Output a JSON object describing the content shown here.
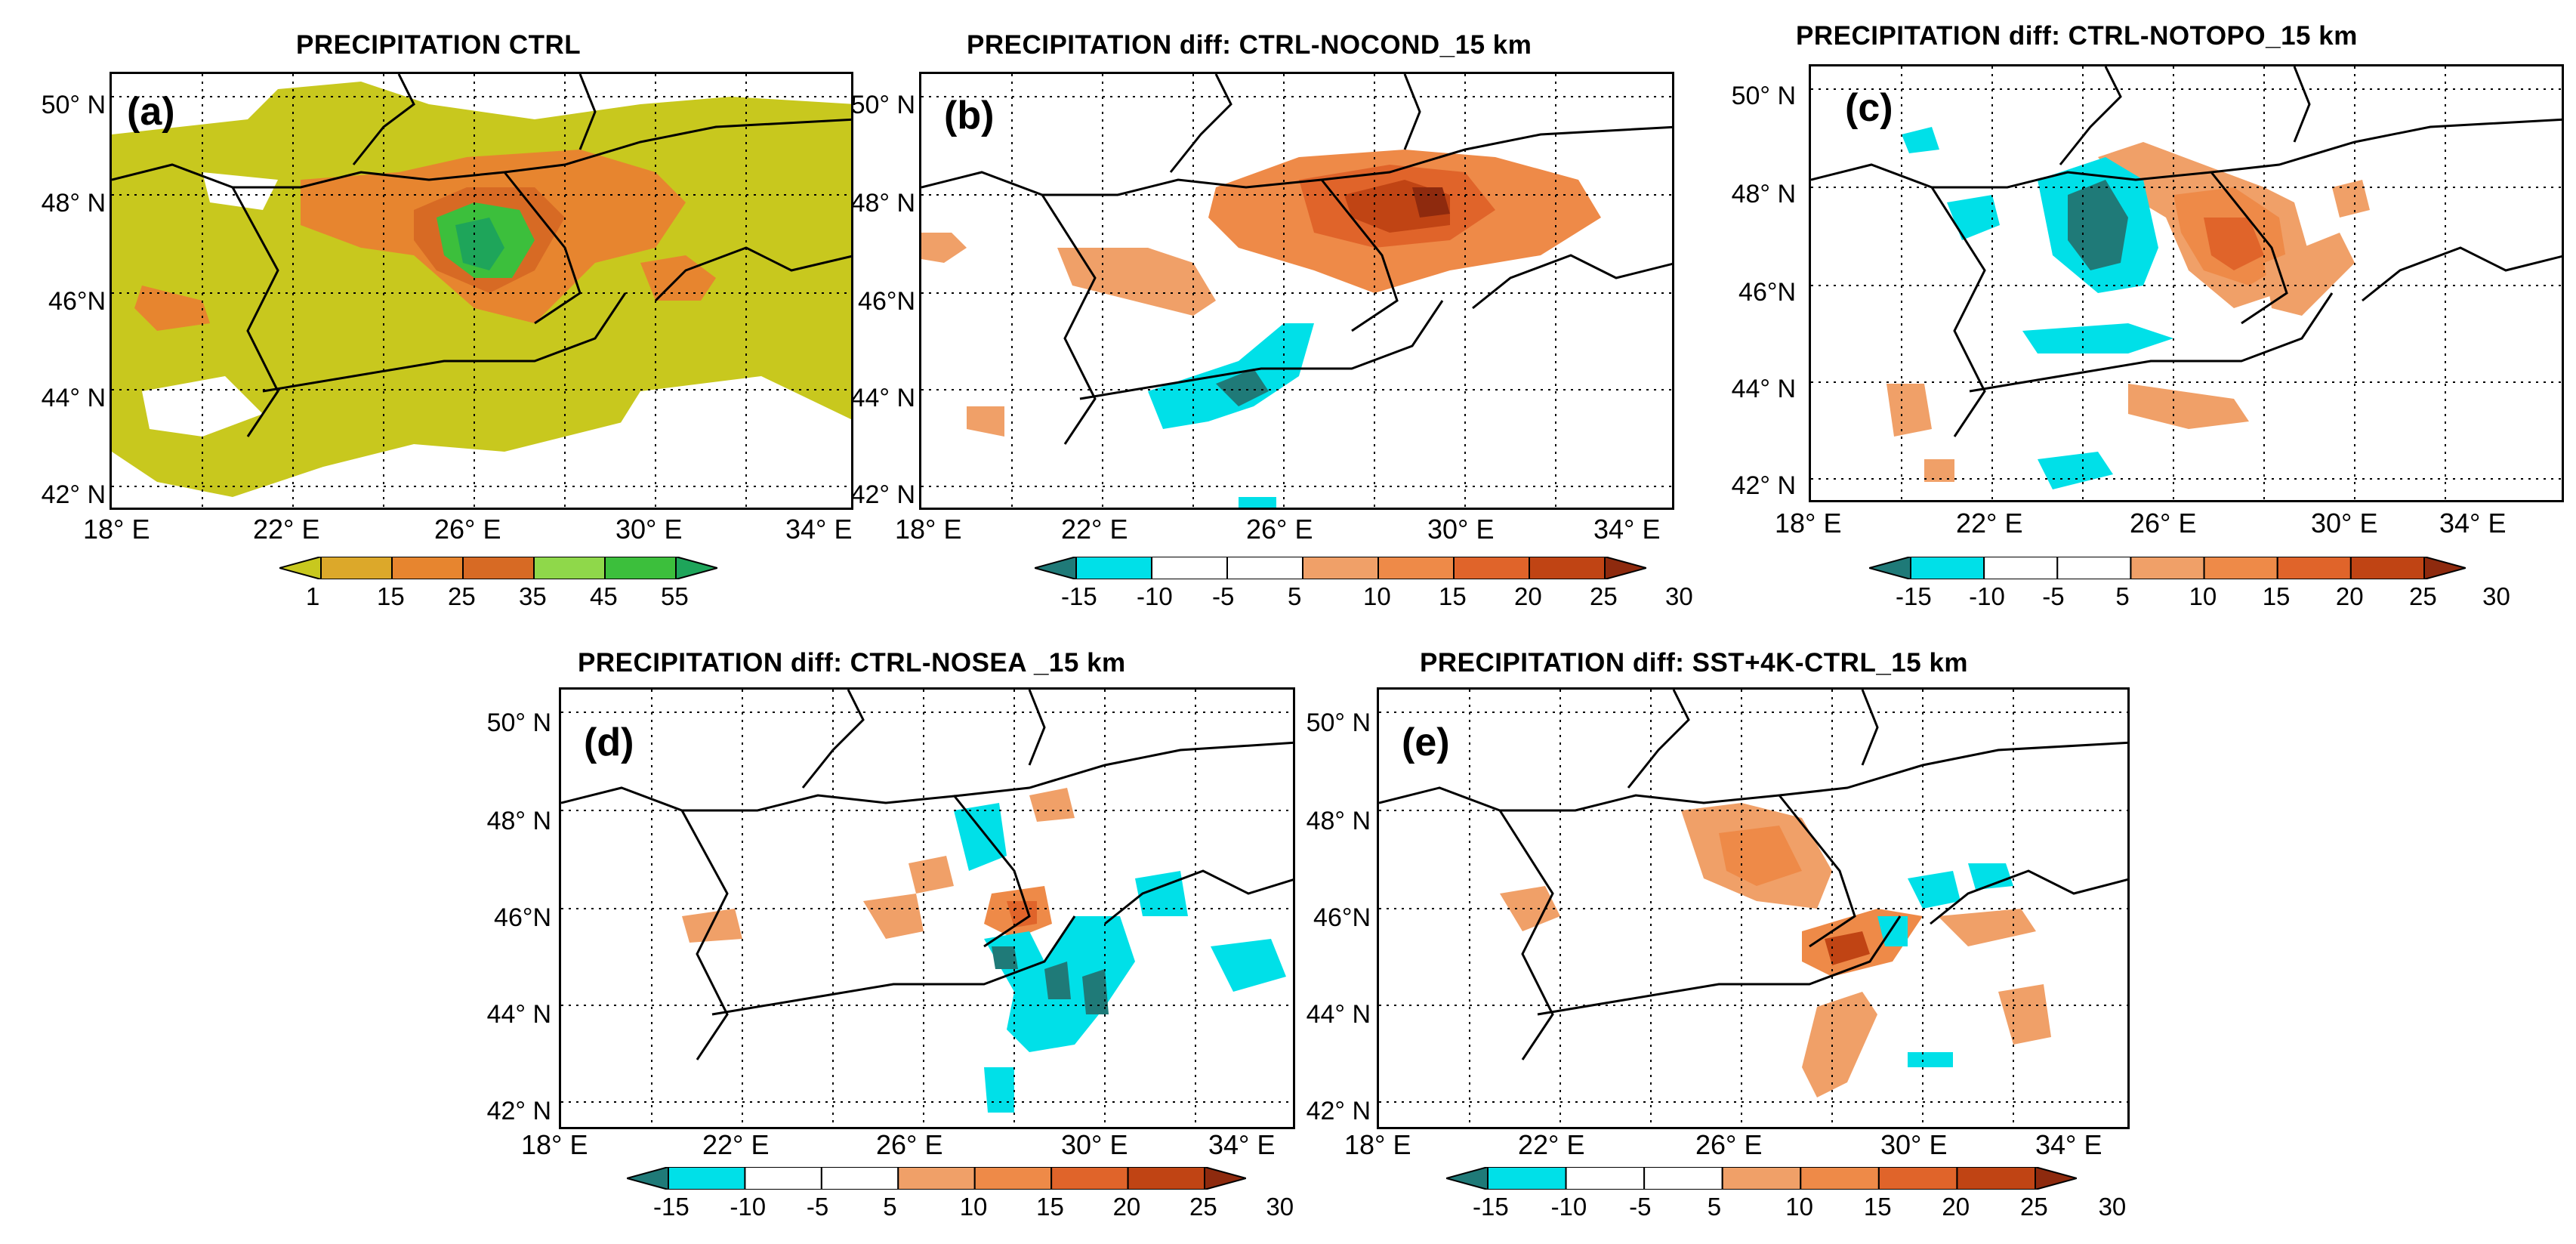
{
  "figure": {
    "lat_labels": [
      "50° N",
      "48° N",
      "46° N",
      "44° N",
      "42° N"
    ],
    "lon_labels": [
      "18° E",
      "22° E",
      "26° E",
      "30° E",
      "34° E"
    ],
    "lat_labels_alt": [
      "50° N",
      "48° N",
      "46°N",
      "44° N",
      "42° N"
    ],
    "lat_labels_b": [
      "50° N",
      "48° N",
      "46°N",
      "44° N",
      "42° N"
    ]
  },
  "panels": [
    {
      "id": "a",
      "label": "(a)",
      "title": "PRECIPITATION CTRL",
      "colorbar": {
        "ticks": [
          "1",
          "15",
          "25",
          "35",
          "45",
          "55"
        ],
        "colors": [
          "#c8c81e",
          "#dca82a",
          "#e7852f",
          "#d76a24",
          "#8fd84a",
          "#3cbf3c",
          "#1ea55a"
        ]
      }
    },
    {
      "id": "b",
      "label": "(b)",
      "title": "PRECIPITATION diff: CTRL-NOCOND_15 km",
      "colorbar": {
        "ticks": [
          "-15",
          "-10",
          "-5",
          "5",
          "10",
          "15",
          "20",
          "25",
          "30"
        ],
        "colors": [
          "#1f7a78",
          "#00e0e8",
          "#ffffff",
          "#ffffff",
          "#f0a068",
          "#ee8a48",
          "#e0642a",
          "#c04414",
          "#8e2a0e"
        ]
      }
    },
    {
      "id": "c",
      "label": "(c)",
      "title": "PRECIPITATION diff: CTRL-NOTOPO_15 km",
      "colorbar": {
        "ticks": [
          "-15",
          "-10",
          "-5",
          "5",
          "10",
          "15",
          "20",
          "25",
          "30"
        ],
        "colors": [
          "#1f7a78",
          "#00e0e8",
          "#ffffff",
          "#ffffff",
          "#f0a068",
          "#ee8a48",
          "#e0642a",
          "#c04414",
          "#8e2a0e"
        ]
      }
    },
    {
      "id": "d",
      "label": "(d)",
      "title": "PRECIPITATION diff: CTRL-NOSEA _15 km",
      "colorbar": {
        "ticks": [
          "-15",
          "-10",
          "-5",
          "5",
          "10",
          "15",
          "20",
          "25",
          "30"
        ],
        "colors": [
          "#1f7a78",
          "#00e0e8",
          "#ffffff",
          "#ffffff",
          "#f0a068",
          "#ee8a48",
          "#e0642a",
          "#c04414",
          "#8e2a0e"
        ]
      }
    },
    {
      "id": "e",
      "label": "(e)",
      "title": "PRECIPITATION diff: SST+4K-CTRL_15 km",
      "colorbar": {
        "ticks": [
          "-15",
          "-10",
          "-5",
          "5",
          "10",
          "15",
          "20",
          "25",
          "30"
        ],
        "colors": [
          "#1f7a78",
          "#00e0e8",
          "#ffffff",
          "#ffffff",
          "#f0a068",
          "#ee8a48",
          "#e0642a",
          "#c04414",
          "#8e2a0e"
        ]
      }
    }
  ]
}
